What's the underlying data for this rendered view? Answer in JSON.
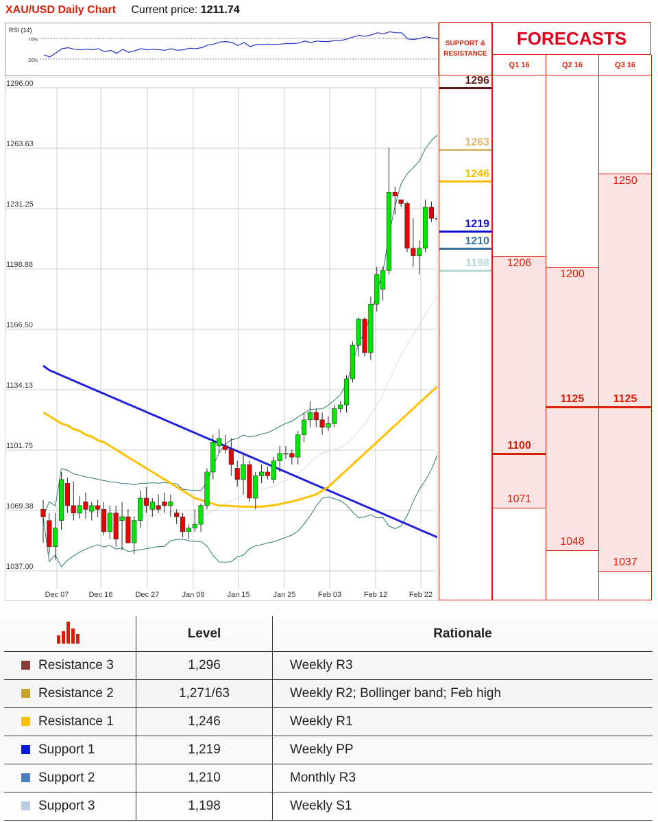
{
  "header": {
    "title": "XAU/USD Daily Chart",
    "price_label": "Current price:",
    "price_value": "1211.74"
  },
  "rsi": {
    "label": "RSI (14)",
    "level_high": "70%",
    "level_low": "30%"
  },
  "sr_header": [
    "SUPPORT &",
    "RESISTANCE"
  ],
  "forecast_title": "FORECASTS",
  "colors": {
    "brand_red": "#d81e06",
    "up_candle": "#00e600",
    "down_candle": "#e60000",
    "ma_blue": "#2222dd",
    "ma_yellow": "#ffc000",
    "bollinger": "#2a7a74"
  },
  "chart_data": {
    "type": "candlestick",
    "title": "XAU/USD Daily Chart",
    "y_ticks": [
      "1296.00",
      "1263.63",
      "1231.25",
      "1198.88",
      "1166.50",
      "1134.13",
      "1101.75",
      "1069.38",
      "1037.00"
    ],
    "ylim": [
      1037,
      1296
    ],
    "x_ticks": [
      "Dec 07",
      "Dec 16",
      "Dec 27",
      "Jan 06",
      "Jan 15",
      "Jan 25",
      "Feb 03",
      "Feb 12",
      "Feb 22"
    ],
    "grid": true,
    "candles": [
      [
        1070,
        1075,
        1052,
        1066
      ],
      [
        1064,
        1068,
        1046,
        1050
      ],
      [
        1050,
        1068,
        1043,
        1060
      ],
      [
        1064,
        1090,
        1059,
        1086
      ],
      [
        1084,
        1087,
        1068,
        1072
      ],
      [
        1072,
        1085,
        1064,
        1068
      ],
      [
        1068,
        1077,
        1065,
        1072
      ],
      [
        1074,
        1079,
        1065,
        1070
      ],
      [
        1069,
        1074,
        1064,
        1072
      ],
      [
        1072,
        1075,
        1066,
        1070
      ],
      [
        1070,
        1074,
        1056,
        1058
      ],
      [
        1058,
        1072,
        1054,
        1068
      ],
      [
        1068,
        1072,
        1050,
        1054
      ],
      [
        1064,
        1074,
        1048,
        1066
      ],
      [
        1066,
        1070,
        1052,
        1052
      ],
      [
        1052,
        1066,
        1046,
        1064
      ],
      [
        1064,
        1080,
        1060,
        1076
      ],
      [
        1076,
        1082,
        1068,
        1072
      ],
      [
        1070,
        1076,
        1066,
        1074
      ],
      [
        1072,
        1078,
        1068,
        1070
      ],
      [
        1074,
        1079,
        1068,
        1072
      ],
      [
        1072,
        1078,
        1066,
        1074
      ],
      [
        1068,
        1070,
        1062,
        1066
      ],
      [
        1066,
        1068,
        1055,
        1058
      ],
      [
        1058,
        1062,
        1054,
        1060
      ],
      [
        1060,
        1070,
        1058,
        1062
      ],
      [
        1062,
        1073,
        1058,
        1072
      ],
      [
        1072,
        1092,
        1070,
        1090
      ],
      [
        1090,
        1110,
        1086,
        1106
      ],
      [
        1104,
        1113,
        1100,
        1108
      ],
      [
        1104,
        1110,
        1100,
        1102
      ],
      [
        1102,
        1108,
        1088,
        1094
      ],
      [
        1092,
        1096,
        1082,
        1086
      ],
      [
        1086,
        1100,
        1078,
        1094
      ],
      [
        1094,
        1096,
        1074,
        1076
      ],
      [
        1076,
        1090,
        1070,
        1088
      ],
      [
        1088,
        1094,
        1084,
        1090
      ],
      [
        1090,
        1093,
        1086,
        1088
      ],
      [
        1086,
        1098,
        1084,
        1096
      ],
      [
        1096,
        1104,
        1090,
        1100
      ],
      [
        1100,
        1104,
        1097,
        1100
      ],
      [
        1100,
        1102,
        1094,
        1098
      ],
      [
        1098,
        1112,
        1094,
        1110
      ],
      [
        1110,
        1122,
        1106,
        1118
      ],
      [
        1118,
        1128,
        1114,
        1122
      ],
      [
        1122,
        1124,
        1114,
        1118
      ],
      [
        1118,
        1122,
        1110,
        1114
      ],
      [
        1114,
        1120,
        1112,
        1116
      ],
      [
        1116,
        1126,
        1114,
        1124
      ],
      [
        1124,
        1128,
        1122,
        1126
      ],
      [
        1126,
        1142,
        1122,
        1140
      ],
      [
        1140,
        1160,
        1138,
        1158
      ],
      [
        1158,
        1173,
        1152,
        1172
      ],
      [
        1172,
        1173,
        1152,
        1154
      ],
      [
        1154,
        1184,
        1150,
        1180
      ],
      [
        1180,
        1200,
        1176,
        1196
      ],
      [
        1188,
        1200,
        1182,
        1198
      ],
      [
        1198,
        1264,
        1196,
        1240
      ],
      [
        1240,
        1243,
        1228,
        1238
      ],
      [
        1236,
        1236,
        1232,
        1234
      ],
      [
        1234,
        1235,
        1208,
        1210
      ],
      [
        1210,
        1226,
        1200,
        1206
      ],
      [
        1206,
        1214,
        1196,
        1210
      ],
      [
        1210,
        1236,
        1208,
        1232
      ],
      [
        1232,
        1235,
        1224,
        1226
      ],
      [
        1226,
        1228,
        1222,
        1226
      ],
      [
        1226,
        1227,
        1213,
        1213
      ]
    ],
    "series": [
      {
        "values": [
          1147,
          1144.6,
          1143.2,
          1141.8,
          1140.4,
          1139,
          1137.6,
          1136.2,
          1134.8,
          1133.4,
          1132,
          1130.6,
          1129.2,
          1127.8,
          1126.4,
          1125,
          1123.6,
          1122.2,
          1120.8,
          1119.4,
          1118,
          1116.6,
          1115.2,
          1113.8,
          1112.4,
          1111,
          1109.6,
          1108.2,
          1106.8,
          1105.4,
          1104,
          1102.6,
          1101.2,
          1099.8,
          1098.4,
          1097,
          1095.6,
          1094.2,
          1092.8,
          1091.4,
          1090,
          1088.6,
          1087.2,
          1085.8,
          1084.4,
          1083,
          1081.6,
          1080.2,
          1078.8,
          1077.4,
          1076,
          1074.6,
          1073.2,
          1071.8,
          1070.4,
          1069,
          1067.6,
          1066.2,
          1064.8,
          1063.4,
          1062,
          1060.6,
          1059.2,
          1057.8,
          1056.4,
          1055,
          1053.6
        ]
      },
      {
        "values": [
          1122,
          1120,
          1118,
          1116,
          1115,
          1113,
          1112,
          1110,
          1109,
          1107,
          1106,
          1104,
          1102,
          1100,
          1098,
          1096,
          1094,
          1092,
          1090,
          1088,
          1086,
          1084,
          1082,
          1080,
          1078,
          1076,
          1075,
          1074,
          1073,
          1072,
          1072,
          1071.8,
          1071.6,
          1071.5,
          1071.4,
          1071.4,
          1071.5,
          1071.8,
          1072.2,
          1072.8,
          1073.5,
          1074.2,
          1075,
          1076,
          1077,
          1078,
          1080,
          1082,
          1085,
          1088,
          1091,
          1094,
          1097,
          1100,
          1103,
          1106,
          1109,
          1112,
          1115,
          1118,
          1121,
          1124,
          1127,
          1130,
          1133,
          1136,
          1140
        ]
      }
    ],
    "rsi_values": [
      38,
      34,
      42,
      50,
      52,
      49,
      48,
      49,
      48,
      50,
      44,
      47,
      41,
      49,
      43,
      46,
      50,
      48,
      49,
      48,
      47,
      50,
      47,
      48,
      51,
      50,
      52,
      57,
      59,
      63,
      64,
      62,
      56,
      62,
      54,
      58,
      58,
      59,
      58,
      59,
      60,
      60,
      61,
      65,
      62,
      65,
      64,
      64,
      66,
      66,
      69,
      73,
      76,
      74,
      77,
      81,
      79,
      83,
      81,
      81,
      69,
      68,
      70,
      73,
      71,
      69,
      64
    ]
  },
  "support_resistance": [
    {
      "value": "1296",
      "color": "#5c1a1a"
    },
    {
      "value": "1263",
      "color": "#e0b870"
    },
    {
      "value": "1246",
      "color": "#f5c000"
    },
    {
      "value": "1219",
      "color": "#1010cc"
    },
    {
      "value": "1210",
      "color": "#3a6e9a"
    },
    {
      "value": "1198",
      "color": "#b8d8d8"
    }
  ],
  "forecasts": [
    {
      "label": "Q1 16",
      "high": "1206",
      "mid": "1100",
      "low": "1071",
      "high_val": 1206,
      "mid_val": 1100,
      "low_val": 1071
    },
    {
      "label": "Q2 16",
      "high": "1200",
      "mid": "1125",
      "low": "1048",
      "high_val": 1200,
      "mid_val": 1125,
      "low_val": 1048
    },
    {
      "label": "Q3 16",
      "high": "1250",
      "mid": "1125",
      "low": "1037",
      "high_val": 1250,
      "mid_val": 1125,
      "low_val": 1037
    }
  ],
  "table": {
    "headers": {
      "level": "Level",
      "rationale": "Rationale"
    },
    "rows": [
      {
        "name": "Resistance 3",
        "level": "1,296",
        "rationale": "Weekly R3",
        "color": "#8b3a3a"
      },
      {
        "name": "Resistance 2",
        "level": "1,271/63",
        "rationale": "Weekly R2; Bollinger band; Feb high",
        "color": "#c9a227"
      },
      {
        "name": "Resistance 1",
        "level": "1,246",
        "rationale": "Weekly R1",
        "color": "#ffc000"
      },
      {
        "name": "Support 1",
        "level": "1,219",
        "rationale": "Weekly PP",
        "color": "#0a1adf"
      },
      {
        "name": "Support 2",
        "level": "1,210",
        "rationale": "Monthly R3",
        "color": "#4a7fbf"
      },
      {
        "name": "Support 3",
        "level": "1,198",
        "rationale": "Weekly S1",
        "color": "#b8cce4"
      }
    ]
  }
}
